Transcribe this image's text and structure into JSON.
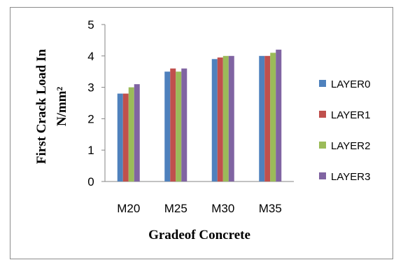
{
  "chart_data": {
    "type": "bar",
    "title": "",
    "xlabel": "Gradeof Concrete",
    "ylabel_line1": "First Crack Load In",
    "ylabel_line2": "N/mm²",
    "categories": [
      "M20",
      "M25",
      "M30",
      "M35"
    ],
    "ylim": [
      0,
      5
    ],
    "yticks": [
      0,
      1,
      2,
      3,
      4,
      5
    ],
    "grid": false,
    "legend_position": "right",
    "series": [
      {
        "name": "LAYER0",
        "color": "#4f81bd",
        "values": [
          2.8,
          3.5,
          3.9,
          4.0
        ]
      },
      {
        "name": "LAYER1",
        "color": "#c0504d",
        "values": [
          2.8,
          3.6,
          3.95,
          4.0
        ]
      },
      {
        "name": "LAYER2",
        "color": "#9bbb59",
        "values": [
          3.0,
          3.5,
          4.0,
          4.1
        ]
      },
      {
        "name": "LAYER3",
        "color": "#8064a2",
        "values": [
          3.1,
          3.6,
          4.0,
          4.2
        ]
      }
    ]
  }
}
